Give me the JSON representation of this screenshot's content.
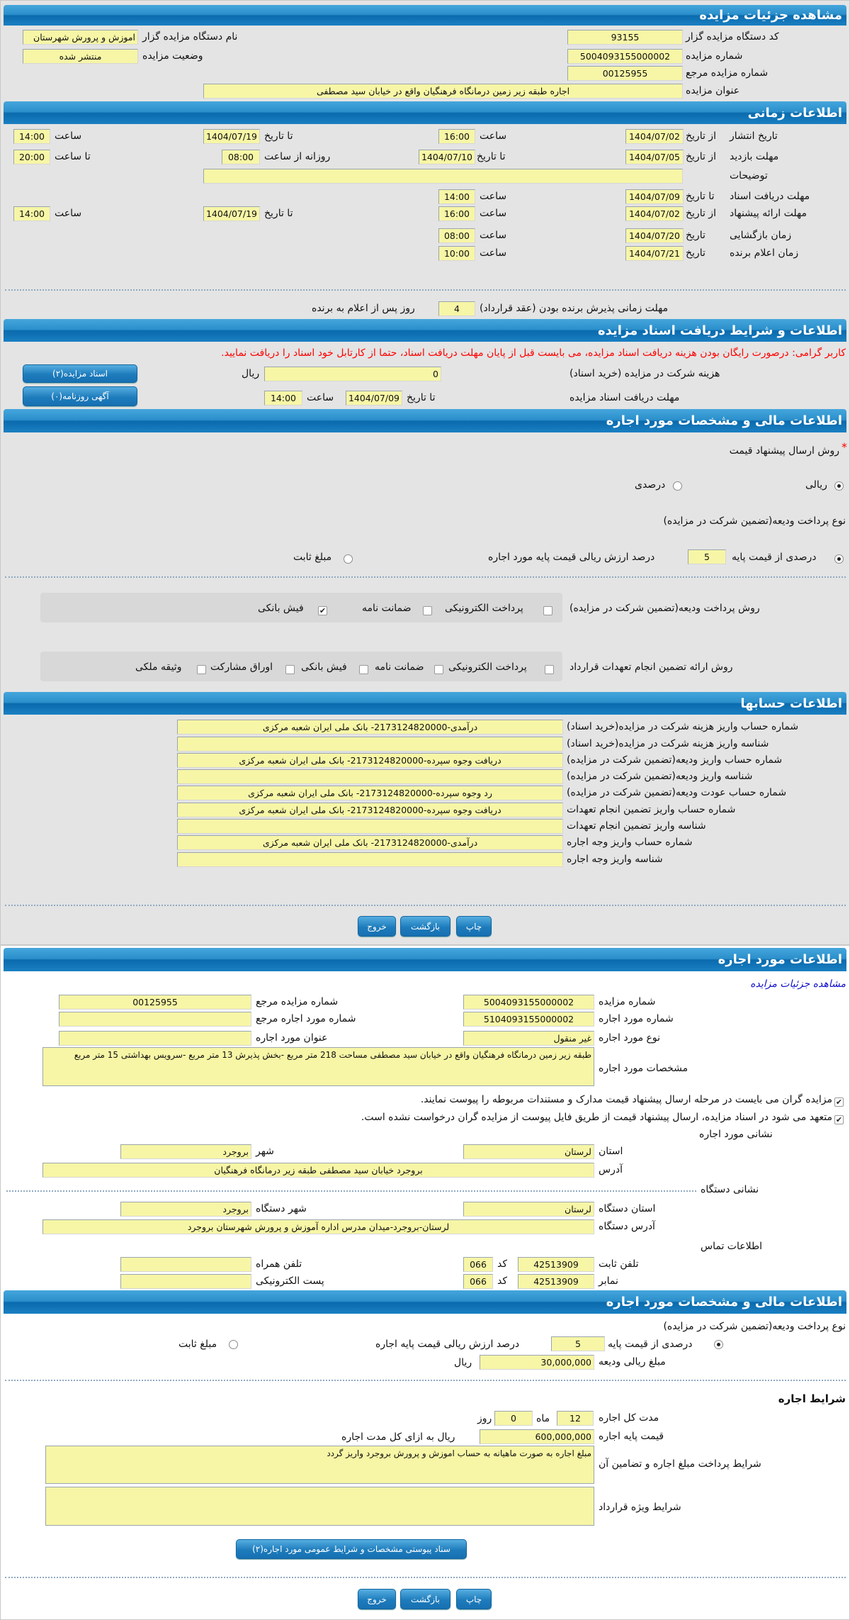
{
  "colors": {
    "header_blue": "#1a80c2",
    "input_bg": "#f7f6a6",
    "warning": "#ff0000",
    "link": "#1010cc",
    "panel_bg": "#e4e4e4"
  },
  "auction": {
    "title": "مشاهده جزئیات مزایده",
    "org_code_label": "کد دستگاه مزایده گزار",
    "org_code": "93155",
    "org_name_label": "نام دستگاه مزایده گزار",
    "org_name": "اموزش و پرورش شهرستان",
    "number_label": "شماره مزایده",
    "number": "5004093155000002",
    "status_label": "وضعیت مزایده",
    "status": "منتشر شده",
    "ref_label": "شماره مزایده مرجع",
    "ref": "00125955",
    "subject_label": "عنوان مزایده",
    "subject": "اجاره طبقه زیر زمین درمانگاه فرهنگیان واقع در خیابان سید مصطفی"
  },
  "timing": {
    "title": "اطلاعات زمانی",
    "publish": {
      "label": "تاریخ انتشار",
      "from_label": "از تاریخ",
      "from_date": "1404/07/02",
      "from_time_label": "ساعت",
      "from_time": "16:00",
      "to_label": "تا تاریخ",
      "to_date": "1404/07/19",
      "to_time_label": "ساعت",
      "to_time": "14:00"
    },
    "visit": {
      "label": "مهلت بازدید",
      "from_label": "از تاریخ",
      "from_date": "1404/07/05",
      "to_label": "تا تاریخ",
      "to_date": "1404/07/10",
      "daily_from_label": "روزانه از ساعت",
      "daily_from": "08:00",
      "daily_to_label": "تا ساعت",
      "daily_to": "20:00"
    },
    "notes": {
      "label": "توضیحات",
      "value": ""
    },
    "docs": {
      "label": "مهلت دریافت اسناد",
      "to_label": "تا تاریخ",
      "to_date": "1404/07/09",
      "time_label": "ساعت",
      "time": "14:00"
    },
    "offer": {
      "label": "مهلت ارائه پیشنهاد",
      "from_label": "از تاریخ",
      "from_date": "1404/07/02",
      "from_time_label": "ساعت",
      "from_time": "16:00",
      "to_label": "تا تاریخ",
      "to_date": "1404/07/19",
      "to_time_label": "ساعت",
      "to_time": "14:00"
    },
    "opening": {
      "label": "زمان بازگشایی",
      "date_label": "تاریخ",
      "date": "1404/07/20",
      "time_label": "ساعت",
      "time": "08:00"
    },
    "winner": {
      "label": "زمان اعلام برنده",
      "date_label": "تاریخ",
      "date": "1404/07/21",
      "time_label": "ساعت",
      "time": "10:00"
    },
    "acceptance": {
      "label": "مهلت زمانی پذیرش برنده بودن (عقد قرارداد)",
      "days": "4",
      "suffix": "روز پس از اعلام به برنده"
    }
  },
  "docs_section": {
    "title": "اطلاعات و شرایط دریافت اسناد مزایده",
    "warning": "کاربر گرامی: درصورت رایگان بودن هزینه دریافت اسناد مزایده، می بایست قبل از پایان مهلت دریافت اسناد، حتما از کارتابل خود اسناد را دریافت نمایید.",
    "fee_label": "هزینه شرکت در مزایده (خرید اسناد)",
    "fee": "0",
    "fee_unit": "ریال",
    "deadline_label": "مهلت دریافت اسناد مزایده",
    "to_label": "تا تاریخ",
    "to_date": "1404/07/09",
    "time_label": "ساعت",
    "time": "14:00",
    "docs_button": "اسناد مزایده(۲)",
    "ad_button": "آگهی روزنامه(۰)"
  },
  "financial": {
    "title": "اطلاعات مالی و مشخصات مورد اجاره",
    "required_mark": "*",
    "price_method_label": "روش ارسال پیشنهاد قیمت",
    "price_method_options": [
      {
        "label": "ریالی",
        "checked": true
      },
      {
        "label": "درصدی",
        "checked": false
      }
    ],
    "deposit_type_label": "نوع پرداخت ودیعه(تضمین شرکت در مزایده)",
    "deposit_percent_selected": true,
    "deposit_percent_label": "درصدی از قیمت پایه",
    "deposit_percent": "5",
    "deposit_percent_suffix": "درصد ارزش ریالی قیمت پایه مورد اجاره",
    "deposit_fixed_selected": false,
    "deposit_fixed_label": "مبلغ ثابت",
    "deposit_method_label": "روش پرداخت ودیعه(تضمین شرکت در مزایده)",
    "deposit_methods": [
      {
        "label": "پرداخت الکترونیکی",
        "checked": false
      },
      {
        "label": "ضمانت نامه",
        "checked": false
      },
      {
        "label": "فیش بانکی",
        "checked": true
      }
    ],
    "guarantee_label": "روش ارائه تضمین انجام تعهدات قرارداد",
    "guarantee_methods": [
      {
        "label": "پرداخت الکترونیکی",
        "checked": false
      },
      {
        "label": "ضمانت نامه",
        "checked": false
      },
      {
        "label": "فیش بانکی",
        "checked": false
      },
      {
        "label": "اوراق مشارکت",
        "checked": false
      },
      {
        "label": "وثیقه ملکی",
        "checked": false
      }
    ]
  },
  "accounts": {
    "title": "اطلاعات حسابها",
    "rows": [
      {
        "label": "شماره حساب واریز هزینه شرکت در مزایده(خرید اسناد)",
        "value": "درآمدی-2173124820000- بانک ملی ایران شعبه مرکزی"
      },
      {
        "label": "شناسه واریز هزینه شرکت در مزایده(خرید اسناد)",
        "value": ""
      },
      {
        "label": "شماره حساب واریز ودیعه(تضمین شرکت در مزایده)",
        "value": "دریافت وجوه سپرده-2173124820000- بانک ملی ایران شعبه مرکزی"
      },
      {
        "label": "شناسه واریز ودیعه(تضمین شرکت در مزایده)",
        "value": ""
      },
      {
        "label": "شماره حساب عودت ودیعه(تضمین شرکت در مزایده)",
        "value": "رد وجوه سپرده-2173124820000- بانک ملی ایران شعبه مرکزی"
      },
      {
        "label": "شماره حساب واریز تضمین انجام تعهدات",
        "value": "دریافت وجوه سپرده-2173124820000- بانک ملی ایران شعبه مرکزی"
      },
      {
        "label": "شناسه واریز تضمین انجام تعهدات",
        "value": ""
      },
      {
        "label": "شماره حساب واریز وجه اجاره",
        "value": "درآمدی-2173124820000- بانک ملی ایران شعبه مرکزی"
      },
      {
        "label": "شناسه واریز وجه اجاره",
        "value": ""
      }
    ]
  },
  "actions": {
    "print": "چاپ",
    "back": "بازگشت",
    "exit": "خروج"
  },
  "lease_item": {
    "title": "اطلاعات مورد اجاره",
    "link": "مشاهده جزئیات مزایده",
    "number_label": "شماره مزایده",
    "number": "5004093155000002",
    "ref_label": "شماره مزایده مرجع",
    "ref": "00125955",
    "item_number_label": "شماره مورد اجاره",
    "item_number": "5104093155000002",
    "item_ref_label": "شماره مورد اجاره مرجع",
    "item_ref": "",
    "type_label": "نوع مورد اجاره",
    "type": "غیر منقول",
    "item_title_label": "عنوان مورد اجاره",
    "item_title": "",
    "specs_label": "مشخصات مورد اجاره",
    "specs": "طبقه زیر زمین درمانگاه فرهنگیان واقع در خیابان سید مصطفی مساحت 218 متر مربع -بخش پذیرش 13 متر مربع -سرویس بهداشتی 15 متر مربع",
    "notices": [
      {
        "label": "مزایده گران می بایست در مرحله ارسال پیشنهاد قیمت مدارک و مستندات مربوطه را پیوست نمایند.",
        "checked": true
      },
      {
        "label": "متعهد می شود در اسناد مزایده، ارسال پیشنهاد قیمت از طریق فایل پیوست از مزایده گران درخواست نشده است.",
        "checked": true
      }
    ],
    "address_title": "نشانی مورد اجاره",
    "province_label": "استان",
    "province": "لرستان",
    "city_label": "شهر",
    "city": "بروجرد",
    "address_label": "آدرس",
    "address": "بروجرد خیابان سید مصطفی طبقه زیر درمانگاه فرهنگیان",
    "org_address_title": "نشانی دستگاه",
    "org_province_label": "استان دستگاه",
    "org_province": "لرستان",
    "org_city_label": "شهر دستگاه",
    "org_city": "بروجرد",
    "org_address_label": "آدرس دستگاه",
    "org_address": "لرستان-بروجرد-میدان مدرس اداره آموزش و پرورش شهرستان بروجرد",
    "contact_title": "اطلاعات تماس",
    "phone_label": "تلفن ثابت",
    "phone": "42513909",
    "code_label": "کد",
    "phone_code": "066",
    "mobile_label": "تلفن همراه",
    "mobile": "",
    "fax_label": "نمابر",
    "fax": "42513909",
    "fax_code": "066",
    "email_label": "پست الکترونیکی",
    "email": ""
  },
  "lease_financial": {
    "title": "اطلاعات مالی و مشخصات مورد اجاره",
    "deposit_type_label": "نوع پرداخت ودیعه(تضمین شرکت در مزایده)",
    "percent_selected": true,
    "percent_label": "درصدی از قیمت پایه",
    "percent": "5",
    "percent_suffix": "درصد ارزش ریالی قیمت پایه اجاره",
    "fixed_selected": false,
    "fixed_label": "مبلغ ثابت",
    "deposit_amount_label": "مبلغ ریالی ودیعه",
    "deposit_amount": "30,000,000",
    "unit": "ریال",
    "conditions_title": "شرایط اجاره",
    "duration_label": "مدت کل اجاره",
    "months": "12",
    "month_label": "ماه",
    "days": "0",
    "day_label": "روز",
    "base_price_label": "قیمت پایه اجاره",
    "base_price": "600,000,000",
    "base_price_suffix": "ریال به ازای کل مدت اجاره",
    "payment_terms_label": "شرایط پرداخت مبلغ اجاره و تضامین آن",
    "payment_terms": "مبلغ اجاره به صورت ماهیانه به حساب اموزش و پرورش بروجرد واریز گردد",
    "special_terms_label": "شرایط ویژه قرارداد",
    "special_terms": "",
    "attachment_button": "سناد پیوستی مشخصات و شرایط عمومی مورد اجاره(۲)"
  }
}
